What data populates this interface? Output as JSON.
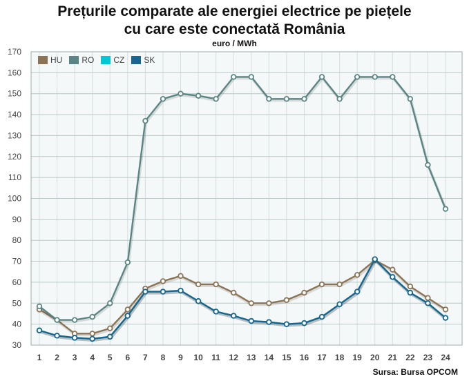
{
  "title_line1": "Prețurile comparate ale energiei electrice pe piețele",
  "title_line2": "cu care este conectată România",
  "unit": "euro / MWh",
  "source": "Sursa: Bursa OPCOM",
  "colors": {
    "HU": "#8b7355",
    "RO": "#5a8585",
    "CZ": "#00c8d0",
    "SK": "#1a6590",
    "grid": "#b8c8c8",
    "bg": "#f5f8f8"
  },
  "chart_data": {
    "type": "line",
    "title": "Prețurile comparate ale energiei electrice pe piețele cu care este conectată România",
    "ylabel": "euro / MWh",
    "xlabel": "",
    "ylim": [
      30,
      170
    ],
    "yticks": [
      30,
      40,
      50,
      60,
      70,
      80,
      90,
      100,
      110,
      120,
      130,
      140,
      150,
      160,
      170
    ],
    "categories": [
      "1",
      "2",
      "3",
      "4",
      "5",
      "6",
      "7",
      "8",
      "9",
      "10",
      "11",
      "12",
      "13",
      "14",
      "15",
      "16",
      "17",
      "18",
      "19",
      "20",
      "21",
      "22",
      "23",
      "24"
    ],
    "grid": true,
    "legend_position": "top-left",
    "series": [
      {
        "name": "HU",
        "values": [
          47,
          42,
          35.5,
          35.5,
          38,
          47,
          57,
          60.5,
          63,
          59,
          59,
          55,
          50,
          50,
          51.5,
          55,
          59,
          59,
          63.5,
          70.5,
          66,
          58,
          52.5,
          47
        ]
      },
      {
        "name": "RO",
        "values": [
          48.5,
          42,
          42,
          43.5,
          50,
          69.5,
          137,
          147.5,
          150,
          149,
          147.5,
          158,
          158,
          147.5,
          147.5,
          147.5,
          158,
          147.5,
          158,
          158,
          158,
          147.5,
          116,
          95
        ]
      },
      {
        "name": "CZ",
        "values": [
          37,
          34.5,
          33.5,
          33,
          34,
          44,
          55.5,
          55.5,
          56,
          51,
          46,
          44,
          41.5,
          41,
          40,
          40.5,
          43.5,
          49.5,
          55.5,
          71,
          62.5,
          55,
          50,
          43
        ]
      },
      {
        "name": "SK",
        "values": [
          37,
          34.5,
          33.5,
          33,
          34,
          44,
          55.5,
          55.5,
          56,
          51,
          46,
          44,
          41.5,
          41,
          40,
          40.5,
          43.5,
          49.5,
          55.5,
          71,
          62.5,
          55,
          50,
          43
        ]
      }
    ]
  }
}
